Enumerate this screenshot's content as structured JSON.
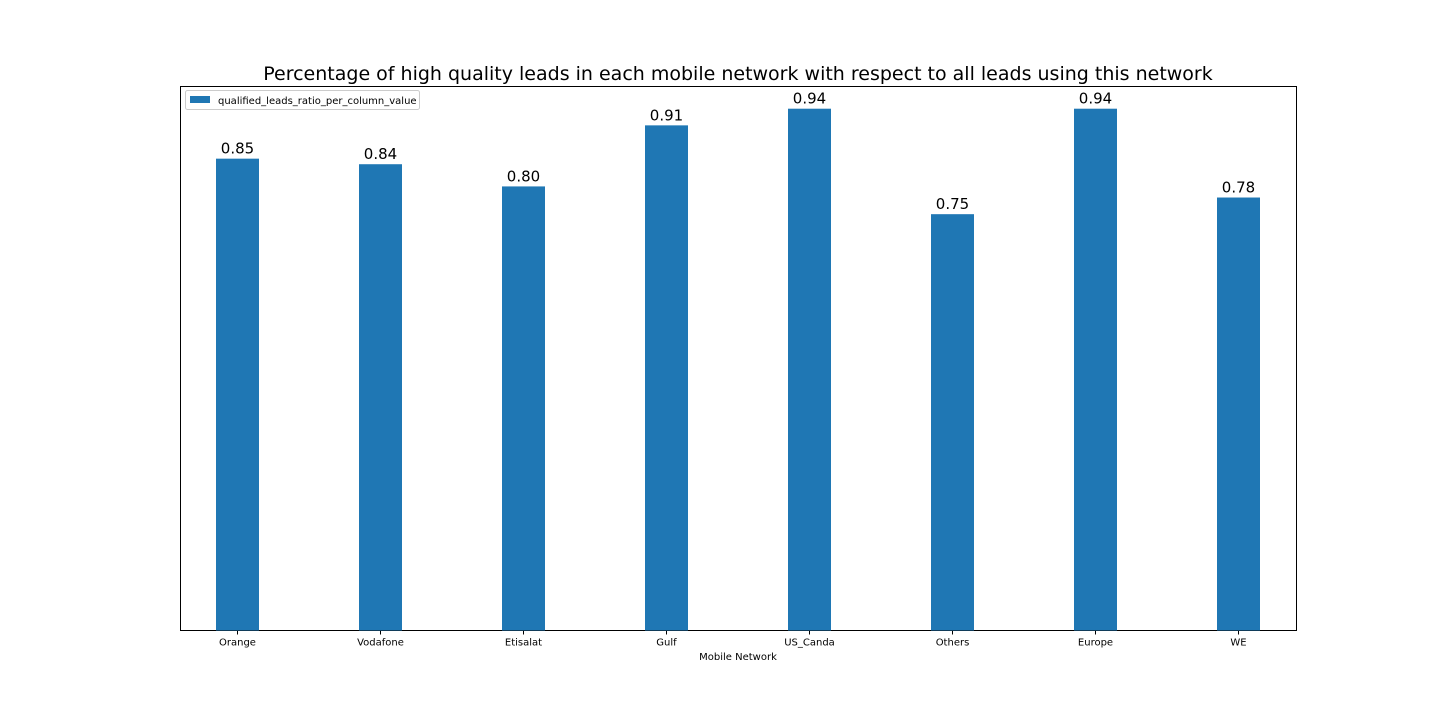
{
  "chart_data": {
    "type": "bar",
    "title": "Percentage of high quality leads in each mobile network with respect to all leads using this network",
    "xlabel": "Mobile Network",
    "ylabel": "",
    "categories": [
      "Orange",
      "Vodafone",
      "Etisalat",
      "Gulf",
      "US_Canda",
      "Others",
      "Europe",
      "WE"
    ],
    "series": [
      {
        "name": "qualified_leads_ratio_per_column_value",
        "values": [
          0.85,
          0.84,
          0.8,
          0.91,
          0.94,
          0.75,
          0.94,
          0.78
        ],
        "labels": [
          "0.85",
          "0.84",
          "0.80",
          "0.91",
          "0.94",
          "0.75",
          "0.94",
          "0.78"
        ],
        "color": "#1f77b4"
      }
    ],
    "ylim": [
      0,
      0.98
    ],
    "y_ticks_visible": false,
    "grid": false,
    "legend_position": "upper-left"
  }
}
